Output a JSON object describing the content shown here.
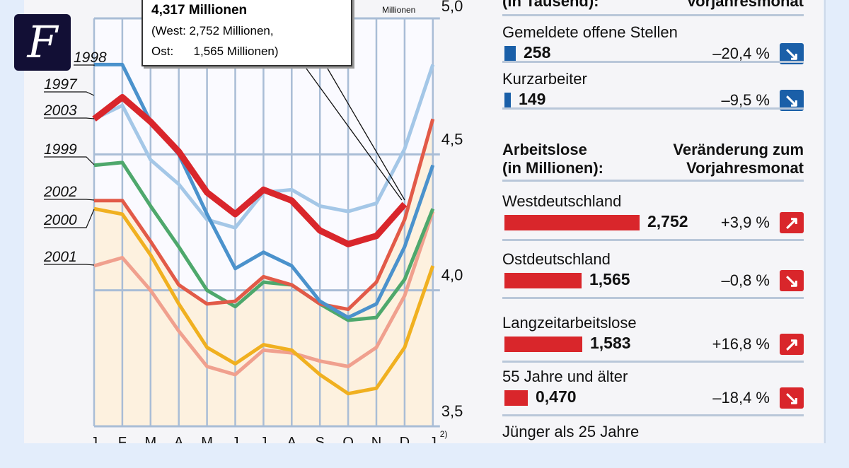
{
  "logo": {
    "letter": "F"
  },
  "callout": {
    "title": "4,317 Millionen",
    "line1": "(West: 2,752 Millionen,",
    "line2_label": "Ost:",
    "line2_value": "1,565 Millionen)"
  },
  "chart_data": {
    "type": "line",
    "unit_label": "Millionen",
    "x": [
      "J",
      "F",
      "M",
      "A",
      "M",
      "J",
      "J",
      "A",
      "S",
      "O",
      "N",
      "D",
      "J"
    ],
    "x_footnote": "2)",
    "ylim": [
      3.5,
      5.0
    ],
    "yticks": [
      "3,5",
      "4,0",
      "4,5",
      "5,0"
    ],
    "ytick_values": [
      3.5,
      4.0,
      4.5,
      5.0
    ],
    "grid": true,
    "series": [
      {
        "name": "2001",
        "color": "#f0a08e",
        "values": [
          4.09,
          4.12,
          4.0,
          3.85,
          3.72,
          3.69,
          3.78,
          3.77,
          3.74,
          3.72,
          3.79,
          3.98,
          4.29
        ]
      },
      {
        "name": "2000",
        "color": "#f0b020",
        "values": [
          4.3,
          4.28,
          4.13,
          3.95,
          3.79,
          3.73,
          3.8,
          3.78,
          3.69,
          3.62,
          3.64,
          3.79,
          4.09
        ]
      },
      {
        "name": "1999",
        "color": "#4ea86c",
        "values": [
          4.46,
          4.47,
          4.31,
          4.16,
          4.0,
          3.94,
          4.03,
          4.02,
          3.95,
          3.89,
          3.9,
          4.04,
          4.3
        ]
      },
      {
        "name": "2002",
        "color": "#e25a48",
        "values": [
          4.33,
          4.33,
          4.18,
          4.02,
          3.95,
          3.96,
          4.05,
          4.02,
          3.95,
          3.93,
          4.03,
          4.26,
          4.63
        ]
      },
      {
        "name": "1997",
        "color": "#a4c7e7",
        "values": [
          4.63,
          4.68,
          4.48,
          4.39,
          4.26,
          4.23,
          4.36,
          4.37,
          4.31,
          4.29,
          4.32,
          4.52,
          4.83
        ]
      },
      {
        "name": "1998",
        "color": "#4b92cc",
        "values": [
          4.83,
          4.83,
          4.62,
          4.5,
          4.28,
          4.08,
          4.14,
          4.09,
          3.96,
          3.9,
          3.95,
          4.16,
          4.46
        ]
      },
      {
        "name": "2003",
        "color": "#d9262b",
        "values": [
          4.63,
          4.71,
          4.62,
          4.51,
          4.36,
          4.28,
          4.37,
          4.33,
          4.22,
          4.17,
          4.2,
          4.317,
          null
        ]
      }
    ]
  },
  "side": {
    "top_header": {
      "left": "(in Tausend):",
      "right": "Vorjahresmonat"
    },
    "top_rows": [
      {
        "name": "Gemeldete offene Stellen",
        "value": "258",
        "pct": "–20,4 %",
        "dir": "down",
        "color": "#1a5fa8"
      },
      {
        "name": "Kurzarbeiter",
        "value": "149",
        "pct": "–9,5 %",
        "dir": "down",
        "color": "#1a5fa8"
      }
    ],
    "header": {
      "left1": "Arbeitslose",
      "left2": "(in Millionen):",
      "right1": "Veränderung zum",
      "right2": "Vorjahresmonat"
    },
    "rows": [
      {
        "name": "Westdeutschland",
        "value": "2,752",
        "pct": "+3,9 %",
        "dir": "up",
        "bar_value": 2.752,
        "color": "#d9262b"
      },
      {
        "name": "Ostdeutschland",
        "value": "1,565",
        "pct": "–0,8 %",
        "dir": "down",
        "bar_value": 1.565,
        "color": "#d9262b"
      },
      {
        "name": "Langzeitarbeitslose",
        "value": "1,583",
        "pct": "+16,8 %",
        "dir": "up",
        "bar_value": 1.583,
        "color": "#d9262b"
      },
      {
        "name": "55 Jahre und älter",
        "value": "0,470",
        "pct": "–18,4 %",
        "dir": "down",
        "bar_value": 0.47,
        "color": "#d9262b"
      },
      {
        "name": "Jünger als 25 Jahre",
        "value": "",
        "pct": "",
        "dir": "",
        "bar_value": null,
        "color": "#d9262b"
      }
    ]
  }
}
